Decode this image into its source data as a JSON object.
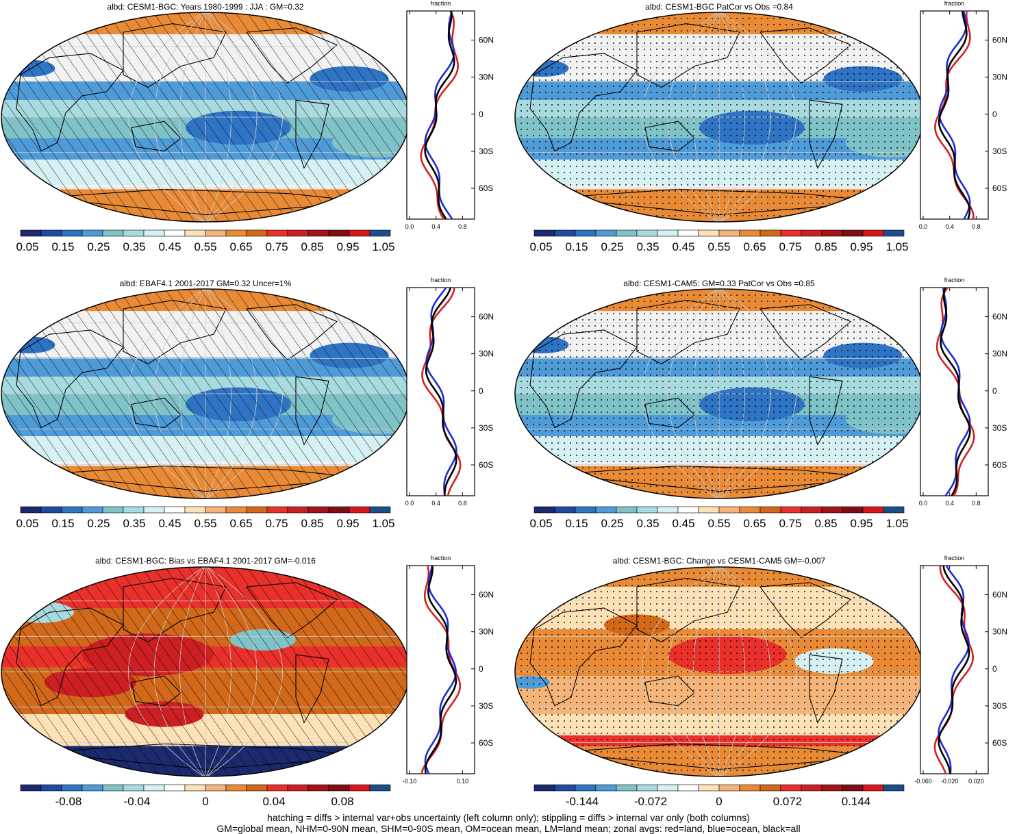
{
  "panels": [
    {
      "id": "p1",
      "title": "albd: CESM1-BGC: Years 1980-1999 : JJA : GM=0.32",
      "scheme": "abs",
      "pattern": "hatch",
      "lat_labels": [
        "60N",
        "30N",
        "0",
        "30S",
        "60S"
      ],
      "x_ticks": [
        "0.0",
        "0.4",
        "0.8"
      ],
      "x_title": "fraction"
    },
    {
      "id": "p2",
      "title": "albd: CESM1-BGC PatCor vs Obs =0.84",
      "scheme": "abs",
      "pattern": "stipple",
      "lat_labels": [
        "60N",
        "30N",
        "0",
        "30S",
        "60S"
      ],
      "x_ticks": [
        "0.0",
        "0.4",
        "0.8"
      ],
      "x_title": "fraction"
    },
    {
      "id": "p3",
      "title": "albd: EBAF4.1 2001-2017 GM=0.32 Uncer=1%",
      "scheme": "abs",
      "pattern": "hatch",
      "lat_labels": [
        "60N",
        "30N",
        "0",
        "30S",
        "60S"
      ],
      "x_ticks": [
        "0.0",
        "0.4",
        "0.8"
      ],
      "x_title": "fraction"
    },
    {
      "id": "p4",
      "title": "albd: CESM1-CAM5: GM=0.33 PatCor vs Obs =0.85",
      "scheme": "abs",
      "pattern": "stipple",
      "lat_labels": [
        "60N",
        "30N",
        "0",
        "30S",
        "60S"
      ],
      "x_ticks": [
        "0.0",
        "0.4",
        "0.8"
      ],
      "x_title": "fraction"
    },
    {
      "id": "p5",
      "title": "albd: CESM1-BGC: Bias vs EBAF4.1 2001-2017 GM=-0.016",
      "scheme": "bias",
      "pattern": "hatch",
      "lat_labels": [
        "60N",
        "30N",
        "0",
        "30S",
        "60S"
      ],
      "x_ticks": [
        "-0.10",
        "0.10"
      ],
      "x_title": "fraction"
    },
    {
      "id": "p6",
      "title": "albd: CESM1-BGC: Change vs CESM1-CAM5 GM=-0.007",
      "scheme": "change",
      "pattern": "stipple",
      "lat_labels": [
        "60N",
        "30N",
        "0",
        "30S",
        "60S"
      ],
      "x_ticks": [
        "-0.060",
        "-0.020",
        "0.020"
      ],
      "x_title": "fraction"
    }
  ],
  "colorbars": {
    "abs": [
      "0.05",
      "0.15",
      "0.25",
      "0.35",
      "0.45",
      "0.55",
      "0.65",
      "0.75",
      "0.85",
      "0.95",
      "1.05"
    ],
    "bias": [
      "-0.08",
      "-0.04",
      "0",
      "0.04",
      "0.08"
    ],
    "change": [
      "-0.144",
      "-0.072",
      "0",
      "0.072",
      "0.144"
    ]
  },
  "colors": {
    "palette": [
      "#1b2a6e",
      "#1f4aa0",
      "#2f74c4",
      "#4f9bd8",
      "#7fc2c8",
      "#a8dbe0",
      "#d6f1f4",
      "#ffffff",
      "#fde2b8",
      "#f5b57a",
      "#e98b36",
      "#d1681a",
      "#e9302a",
      "#cc1f22",
      "#a3131a",
      "#7d0e16",
      "#d8161c",
      "#1c4f8a"
    ],
    "land_line": "#d42020",
    "ocean_line": "#1c2bd6",
    "all_line": "#000000"
  },
  "footer": {
    "line1": "hatching = diffs > internal var+obs uncertainty (left column only); stippling = diffs > internal var only (both columns)",
    "line2": "GM=global mean, NHM=0-90N mean, SHM=0-90S mean, OM=ocean mean, LM=land mean; zonal avgs: red=land, blue=ocean, black=all"
  }
}
